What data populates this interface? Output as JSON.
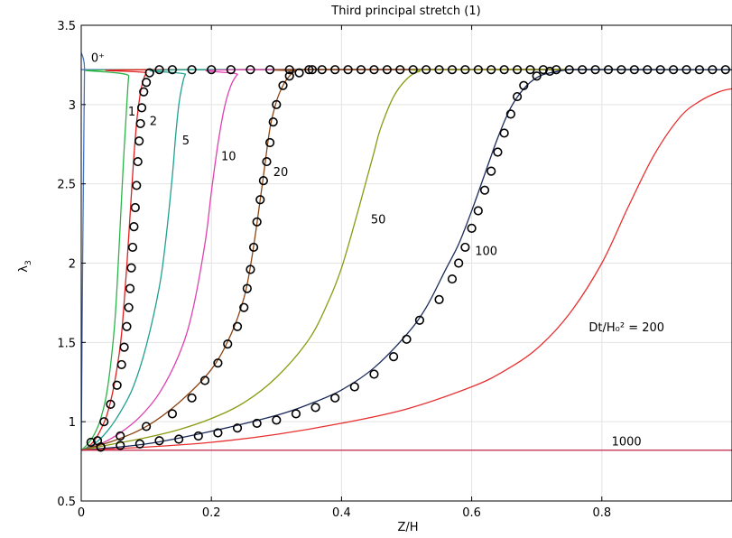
{
  "chart_data": {
    "type": "line",
    "title": "Third principal stretch (1)",
    "xlabel": "Z/H",
    "ylabel": "λ",
    "ylabel_sub": "3",
    "xlim": [
      0,
      1
    ],
    "ylim": [
      0.5,
      3.5
    ],
    "x_ticks": [
      0,
      0.2,
      0.4,
      0.6,
      0.8
    ],
    "x_tick_labels": [
      "0",
      "0.2",
      "0.4",
      "0.6",
      "0.8"
    ],
    "y_ticks": [
      0.5,
      1,
      1.5,
      2,
      2.5,
      3,
      3.5
    ],
    "y_tick_labels": [
      "0.5",
      "1",
      "1.5",
      "2",
      "2.5",
      "3",
      "3.5"
    ],
    "grid": true,
    "series": [
      {
        "name": "0+",
        "color": "#4472c4",
        "x": [
          0,
          0.005,
          0.01,
          1
        ],
        "y": [
          0.82,
          3.22,
          3.22,
          3.22
        ]
      },
      {
        "name": "1",
        "color": "#2db34a",
        "x": [
          0,
          0.01,
          0.02,
          0.03,
          0.04,
          0.05,
          0.055,
          0.06,
          0.065,
          0.07,
          0.073,
          0.076,
          1
        ],
        "y": [
          0.82,
          0.86,
          0.92,
          1.02,
          1.2,
          1.55,
          1.85,
          2.25,
          2.65,
          3.0,
          3.18,
          3.22,
          3.22
        ]
      },
      {
        "name": "2",
        "color": "#e02020",
        "x": [
          0,
          0.01,
          0.02,
          0.03,
          0.04,
          0.05,
          0.06,
          0.065,
          0.07,
          0.075,
          0.08,
          0.085,
          0.09,
          0.095,
          0.1,
          0.105,
          1
        ],
        "y": [
          0.82,
          0.84,
          0.88,
          0.95,
          1.05,
          1.22,
          1.48,
          1.7,
          1.98,
          2.3,
          2.62,
          2.88,
          3.05,
          3.15,
          3.2,
          3.22,
          3.22
        ]
      },
      {
        "name": "5",
        "color": "#20a090",
        "x": [
          0,
          0.02,
          0.04,
          0.06,
          0.08,
          0.1,
          0.12,
          0.13,
          0.14,
          0.145,
          0.15,
          0.155,
          0.16,
          0.17,
          1
        ],
        "y": [
          0.82,
          0.86,
          0.94,
          1.06,
          1.22,
          1.48,
          1.85,
          2.15,
          2.55,
          2.8,
          3.0,
          3.12,
          3.19,
          3.22,
          3.22
        ]
      },
      {
        "name": "10",
        "color": "#e040b0",
        "x": [
          0,
          0.03,
          0.06,
          0.09,
          0.12,
          0.15,
          0.17,
          0.19,
          0.2,
          0.21,
          0.22,
          0.23,
          0.24,
          0.25,
          1
        ],
        "y": [
          0.82,
          0.86,
          0.93,
          1.03,
          1.18,
          1.42,
          1.68,
          2.12,
          2.45,
          2.75,
          2.98,
          3.12,
          3.19,
          3.22,
          3.22
        ]
      },
      {
        "name": "20",
        "color": "#8b4513",
        "x": [
          0,
          0.05,
          0.1,
          0.15,
          0.2,
          0.23,
          0.25,
          0.26,
          0.27,
          0.28,
          0.29,
          0.3,
          0.31,
          0.32,
          0.33,
          0.35,
          1
        ],
        "y": [
          0.82,
          0.88,
          0.97,
          1.12,
          1.33,
          1.55,
          1.78,
          1.98,
          2.25,
          2.55,
          2.85,
          3.02,
          3.12,
          3.18,
          3.21,
          3.22,
          3.22
        ]
      },
      {
        "name": "50",
        "color": "#8a9a10",
        "x": [
          0,
          0.05,
          0.1,
          0.15,
          0.2,
          0.25,
          0.3,
          0.35,
          0.38,
          0.4,
          0.42,
          0.44,
          0.45,
          0.46,
          0.48,
          0.5,
          0.52,
          0.55,
          1
        ],
        "y": [
          0.82,
          0.86,
          0.9,
          0.95,
          1.02,
          1.12,
          1.28,
          1.52,
          1.76,
          1.97,
          2.25,
          2.55,
          2.7,
          2.85,
          3.05,
          3.16,
          3.21,
          3.22,
          3.22
        ]
      },
      {
        "name": "100",
        "color": "#1a2a5a",
        "x": [
          0,
          0.1,
          0.2,
          0.3,
          0.35,
          0.4,
          0.45,
          0.5,
          0.53,
          0.56,
          0.58,
          0.6,
          0.62,
          0.64,
          0.66,
          0.68,
          0.7,
          0.72,
          0.75,
          0.78,
          1
        ],
        "y": [
          0.82,
          0.86,
          0.94,
          1.04,
          1.11,
          1.2,
          1.34,
          1.55,
          1.72,
          1.96,
          2.12,
          2.33,
          2.56,
          2.79,
          2.98,
          3.1,
          3.17,
          3.2,
          3.22,
          3.22,
          3.22
        ]
      },
      {
        "name": "200",
        "color": "#e83030",
        "x": [
          0,
          0.1,
          0.2,
          0.3,
          0.4,
          0.5,
          0.6,
          0.65,
          0.7,
          0.75,
          0.8,
          0.84,
          0.88,
          0.92,
          0.95,
          0.98,
          1.0
        ],
        "y": [
          0.82,
          0.84,
          0.87,
          0.92,
          0.99,
          1.08,
          1.22,
          1.32,
          1.46,
          1.68,
          2.0,
          2.35,
          2.68,
          2.92,
          3.02,
          3.08,
          3.1
        ]
      },
      {
        "name": "1000",
        "color": "#c0204a",
        "x": [
          0,
          1
        ],
        "y": [
          0.82,
          0.82
        ]
      }
    ],
    "markers": [
      {
        "name": "2",
        "x": [
          0.015,
          0.025,
          0.035,
          0.045,
          0.055,
          0.062,
          0.066,
          0.07,
          0.073,
          0.075,
          0.077,
          0.079,
          0.081,
          0.083,
          0.085,
          0.087,
          0.089,
          0.091,
          0.093,
          0.096,
          0.1,
          0.105
        ],
        "y": [
          0.87,
          0.88,
          1.0,
          1.11,
          1.23,
          1.36,
          1.47,
          1.6,
          1.72,
          1.84,
          1.97,
          2.1,
          2.23,
          2.35,
          2.49,
          2.64,
          2.77,
          2.88,
          2.98,
          3.08,
          3.14,
          3.2
        ]
      },
      {
        "name": "20",
        "x": [
          0.03,
          0.06,
          0.1,
          0.14,
          0.17,
          0.19,
          0.21,
          0.225,
          0.24,
          0.25,
          0.255,
          0.26,
          0.265,
          0.27,
          0.275,
          0.28,
          0.285,
          0.29,
          0.295,
          0.3,
          0.31,
          0.32,
          0.335,
          0.355
        ],
        "y": [
          0.84,
          0.91,
          0.97,
          1.05,
          1.15,
          1.26,
          1.37,
          1.49,
          1.6,
          1.72,
          1.84,
          1.96,
          2.1,
          2.26,
          2.4,
          2.52,
          2.64,
          2.76,
          2.89,
          3.0,
          3.12,
          3.18,
          3.2,
          3.22
        ]
      },
      {
        "name": "100",
        "x": [
          0.03,
          0.06,
          0.09,
          0.12,
          0.15,
          0.18,
          0.21,
          0.24,
          0.27,
          0.3,
          0.33,
          0.36,
          0.39,
          0.42,
          0.45,
          0.48,
          0.5,
          0.52,
          0.55,
          0.57,
          0.58,
          0.59,
          0.6,
          0.61,
          0.62,
          0.63,
          0.64,
          0.65,
          0.66,
          0.67,
          0.68,
          0.7,
          0.72
        ],
        "y": [
          0.84,
          0.85,
          0.86,
          0.88,
          0.89,
          0.91,
          0.93,
          0.96,
          0.99,
          1.01,
          1.05,
          1.09,
          1.15,
          1.22,
          1.3,
          1.41,
          1.52,
          1.64,
          1.77,
          1.9,
          2.0,
          2.1,
          2.22,
          2.33,
          2.46,
          2.58,
          2.7,
          2.82,
          2.94,
          3.05,
          3.12,
          3.18,
          3.21
        ]
      },
      {
        "name": "top",
        "x": [
          0.12,
          0.14,
          0.17,
          0.2,
          0.23,
          0.26,
          0.29,
          0.32,
          0.35,
          0.37,
          0.39,
          0.41,
          0.43,
          0.45,
          0.47,
          0.49,
          0.51,
          0.53,
          0.55,
          0.57,
          0.59,
          0.61,
          0.63,
          0.65,
          0.67,
          0.69,
          0.71,
          0.73,
          0.75,
          0.77,
          0.79,
          0.81,
          0.83,
          0.85,
          0.87,
          0.89,
          0.91,
          0.93,
          0.95,
          0.97,
          0.99
        ],
        "y": [
          3.22,
          3.22,
          3.22,
          3.22,
          3.22,
          3.22,
          3.22,
          3.22,
          3.22,
          3.22,
          3.22,
          3.22,
          3.22,
          3.22,
          3.22,
          3.22,
          3.22,
          3.22,
          3.22,
          3.22,
          3.22,
          3.22,
          3.22,
          3.22,
          3.22,
          3.22,
          3.22,
          3.22,
          3.22,
          3.22,
          3.22,
          3.22,
          3.22,
          3.22,
          3.22,
          3.22,
          3.22,
          3.22,
          3.22,
          3.22,
          3.22
        ]
      }
    ],
    "annotations": [
      {
        "text": "0⁺",
        "x": 0.015,
        "y": 3.27
      },
      {
        "text": "1",
        "x": 0.072,
        "y": 2.93
      },
      {
        "text": "2",
        "x": 0.105,
        "y": 2.87
      },
      {
        "text": "5",
        "x": 0.155,
        "y": 2.75
      },
      {
        "text": "10",
        "x": 0.215,
        "y": 2.65
      },
      {
        "text": "20",
        "x": 0.295,
        "y": 2.55
      },
      {
        "text": "50",
        "x": 0.445,
        "y": 2.25
      },
      {
        "text": "100",
        "x": 0.605,
        "y": 2.05
      },
      {
        "text": "Dt/H₀² = 200",
        "x": 0.78,
        "y": 1.57
      },
      {
        "text": "1000",
        "x": 0.815,
        "y": 0.85
      }
    ]
  }
}
